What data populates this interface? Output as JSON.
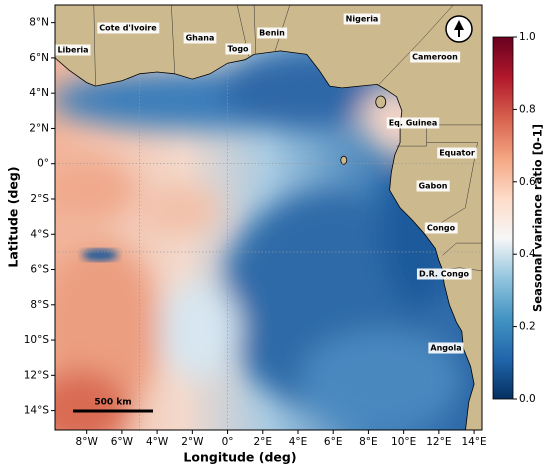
{
  "map": {
    "xlabel": "Longitude (deg)",
    "ylabel": "Latitude (deg)",
    "xlim": [
      -9.8,
      14.45
    ],
    "ylim": [
      -15.1,
      9
    ],
    "xticks": [
      {
        "value": -8,
        "label": "8°W"
      },
      {
        "value": -6,
        "label": "6°W"
      },
      {
        "value": -4,
        "label": "4°W"
      },
      {
        "value": -2,
        "label": "2°W"
      },
      {
        "value": 0,
        "label": "0°"
      },
      {
        "value": 2,
        "label": "2°E"
      },
      {
        "value": 4,
        "label": "4°E"
      },
      {
        "value": 6,
        "label": "6°E"
      },
      {
        "value": 8,
        "label": "8°E"
      },
      {
        "value": 10,
        "label": "10°E"
      },
      {
        "value": 12,
        "label": "12°E"
      },
      {
        "value": 14,
        "label": "14°E"
      }
    ],
    "yticks": [
      {
        "value": 8,
        "label": "8°N"
      },
      {
        "value": 6,
        "label": "6°N"
      },
      {
        "value": 4,
        "label": "4°N"
      },
      {
        "value": 2,
        "label": "2°N"
      },
      {
        "value": 0,
        "label": "0°"
      },
      {
        "value": -2,
        "label": "2°S"
      },
      {
        "value": -4,
        "label": "4°S"
      },
      {
        "value": -6,
        "label": "6°S"
      },
      {
        "value": -8,
        "label": "8°S"
      },
      {
        "value": -10,
        "label": "10°S"
      },
      {
        "value": -12,
        "label": "12°S"
      },
      {
        "value": -14,
        "label": "14°S"
      }
    ],
    "grid_lon": [
      -5,
      0
    ],
    "grid_lat": [
      0,
      -5
    ],
    "countries": [
      "Liberia",
      "Cote d'Ivoire",
      "Ghana",
      "Togo",
      "Benin",
      "Nigeria",
      "Cameroon",
      "Eq. Guinea",
      "Equator",
      "Gabon",
      "Congo",
      "D.R. Congo",
      "Angola"
    ],
    "scale_bar": "500 km",
    "colorbar": {
      "label": "Seasonal variance ratio [0-1]",
      "lim": [
        0,
        1
      ],
      "ticks": [
        {
          "value": 0,
          "label": "0.0"
        },
        {
          "value": 0.2,
          "label": "0.2"
        },
        {
          "value": 0.4,
          "label": "0.4"
        },
        {
          "value": 0.6,
          "label": "0.6"
        },
        {
          "value": 0.8,
          "label": "0.8"
        },
        {
          "value": 1,
          "label": "1.0"
        }
      ],
      "colormap": [
        "#053061",
        "#2166ac",
        "#4393c3",
        "#92c5de",
        "#f7f7f7",
        "#fddbc7",
        "#f4a582",
        "#d6604d",
        "#b2182b",
        "#67001f"
      ]
    }
  }
}
